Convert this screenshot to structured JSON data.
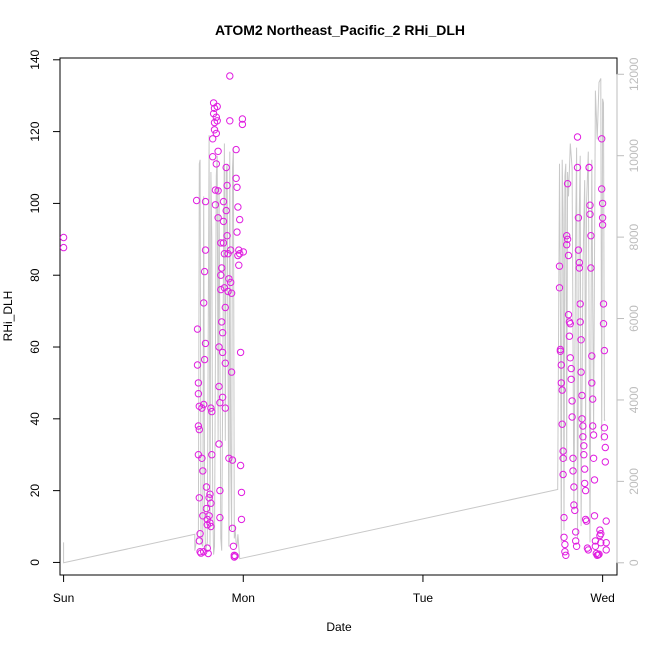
{
  "chart_data": {
    "type": "scatter",
    "title": "ATOM2 Northeast_Pacific_2 RHi_DLH",
    "xlabel": "Date",
    "ylabel": "RHi_DLH",
    "x_ticks": [
      {
        "label": "Sun",
        "value": 0
      },
      {
        "label": "Mon",
        "value": 1
      },
      {
        "label": "Tue",
        "value": 2
      },
      {
        "label": "Wed",
        "value": 3
      }
    ],
    "y_ticks": [
      "0",
      "20",
      "40",
      "60",
      "80",
      "100",
      "120",
      "140"
    ],
    "y2_ticks": [
      "0",
      "2000",
      "4000",
      "6000",
      "8000",
      "10000",
      "12000"
    ],
    "xlim": [
      -0.02,
      3.08
    ],
    "ylim": [
      -3.5,
      140.5
    ],
    "y2lim": [
      -300,
      12400
    ],
    "grid": false,
    "colors": {
      "points": "#e01ee0",
      "line": "#c8c8c8",
      "right_axis": "#bdbdbd"
    },
    "series": [
      {
        "marker": "circle",
        "points": [
          [
            0.0,
            90.5
          ],
          [
            0.0,
            87.7
          ],
          [
            0.74,
            100.8
          ],
          [
            0.745,
            65
          ],
          [
            0.745,
            55
          ],
          [
            0.75,
            50
          ],
          [
            0.75,
            47
          ],
          [
            0.755,
            43.5
          ],
          [
            0.75,
            38
          ],
          [
            0.755,
            37
          ],
          [
            0.75,
            30
          ],
          [
            0.755,
            18
          ],
          [
            0.76,
            8
          ],
          [
            0.755,
            6
          ],
          [
            0.76,
            3
          ],
          [
            0.765,
            2.6
          ],
          [
            0.77,
            43
          ],
          [
            0.77,
            29
          ],
          [
            0.775,
            25.5
          ],
          [
            0.775,
            13
          ],
          [
            0.78,
            72.3
          ],
          [
            0.78,
            44
          ],
          [
            0.78,
            3
          ],
          [
            0.785,
            81
          ],
          [
            0.785,
            56.5
          ],
          [
            0.79,
            87
          ],
          [
            0.79,
            100.5
          ],
          [
            0.79,
            61
          ],
          [
            0.795,
            21
          ],
          [
            0.795,
            15
          ],
          [
            0.8,
            12
          ],
          [
            0.8,
            10.5
          ],
          [
            0.8,
            4
          ],
          [
            0.805,
            2.5
          ],
          [
            0.81,
            18
          ],
          [
            0.81,
            13
          ],
          [
            0.815,
            19
          ],
          [
            0.815,
            11
          ],
          [
            0.82,
            16.5
          ],
          [
            0.82,
            10
          ],
          [
            0.82,
            43
          ],
          [
            0.825,
            30
          ],
          [
            0.825,
            42
          ],
          [
            0.83,
            113
          ],
          [
            0.83,
            118
          ],
          [
            0.835,
            125
          ],
          [
            0.835,
            128
          ],
          [
            0.84,
            126.5
          ],
          [
            0.84,
            122.5
          ],
          [
            0.84,
            120.5
          ],
          [
            0.845,
            103.7
          ],
          [
            0.845,
            99.6
          ],
          [
            0.85,
            111
          ],
          [
            0.85,
            119.5
          ],
          [
            0.85,
            124
          ],
          [
            0.855,
            127
          ],
          [
            0.855,
            123
          ],
          [
            0.86,
            96
          ],
          [
            0.86,
            103.5
          ],
          [
            0.86,
            114.5
          ],
          [
            0.865,
            60
          ],
          [
            0.865,
            49
          ],
          [
            0.865,
            33
          ],
          [
            0.87,
            44.5
          ],
          [
            0.87,
            20
          ],
          [
            0.87,
            12.5
          ],
          [
            0.875,
            89
          ],
          [
            0.875,
            80
          ],
          [
            0.875,
            76
          ],
          [
            0.88,
            82
          ],
          [
            0.88,
            67
          ],
          [
            0.885,
            64
          ],
          [
            0.885,
            58.5
          ],
          [
            0.885,
            46
          ],
          [
            0.89,
            100.5
          ],
          [
            0.89,
            95
          ],
          [
            0.89,
            89
          ],
          [
            0.895,
            86
          ],
          [
            0.895,
            76.5
          ],
          [
            0.9,
            71
          ],
          [
            0.9,
            55.5
          ],
          [
            0.9,
            43
          ],
          [
            0.905,
            110
          ],
          [
            0.905,
            98
          ],
          [
            0.91,
            105
          ],
          [
            0.91,
            91
          ],
          [
            0.915,
            86
          ],
          [
            0.915,
            75.5
          ],
          [
            0.92,
            79
          ],
          [
            0.92,
            29
          ],
          [
            0.925,
            135.5
          ],
          [
            0.925,
            123
          ],
          [
            0.93,
            87
          ],
          [
            0.93,
            78
          ],
          [
            0.935,
            75
          ],
          [
            0.935,
            53
          ],
          [
            0.94,
            28.5
          ],
          [
            0.94,
            9.5
          ],
          [
            0.945,
            4.5
          ],
          [
            0.95,
            2
          ],
          [
            0.95,
            1.5
          ],
          [
            0.955,
            1.8
          ],
          [
            0.96,
            115
          ],
          [
            0.96,
            107
          ],
          [
            0.965,
            104.5
          ],
          [
            0.965,
            92
          ],
          [
            0.97,
            99
          ],
          [
            0.97,
            85.5
          ],
          [
            0.975,
            87
          ],
          [
            0.975,
            82.8
          ],
          [
            0.98,
            95.5
          ],
          [
            0.98,
            86
          ],
          [
            0.985,
            58.5
          ],
          [
            0.985,
            27
          ],
          [
            0.99,
            19.5
          ],
          [
            0.99,
            12
          ],
          [
            0.995,
            123.5
          ],
          [
            0.995,
            122
          ],
          [
            1.0,
            86.5
          ],
          [
            2.76,
            76.5
          ],
          [
            2.76,
            82.5
          ],
          [
            2.765,
            58.8
          ],
          [
            2.765,
            59.3
          ],
          [
            2.77,
            55
          ],
          [
            2.77,
            50
          ],
          [
            2.775,
            48
          ],
          [
            2.775,
            38.5
          ],
          [
            2.78,
            31
          ],
          [
            2.78,
            29
          ],
          [
            2.78,
            24.5
          ],
          [
            2.785,
            12.5
          ],
          [
            2.785,
            7
          ],
          [
            2.79,
            5
          ],
          [
            2.79,
            3
          ],
          [
            2.795,
            2
          ],
          [
            2.8,
            91
          ],
          [
            2.8,
            88.5
          ],
          [
            2.805,
            105.5
          ],
          [
            2.805,
            90
          ],
          [
            2.81,
            85.5
          ],
          [
            2.81,
            69
          ],
          [
            2.815,
            67
          ],
          [
            2.815,
            63
          ],
          [
            2.82,
            66.5
          ],
          [
            2.82,
            57
          ],
          [
            2.825,
            54
          ],
          [
            2.825,
            51
          ],
          [
            2.83,
            45
          ],
          [
            2.83,
            40.5
          ],
          [
            2.835,
            29
          ],
          [
            2.835,
            25.5
          ],
          [
            2.84,
            21
          ],
          [
            2.84,
            16
          ],
          [
            2.845,
            14.5
          ],
          [
            2.85,
            8.5
          ],
          [
            2.85,
            6
          ],
          [
            2.855,
            4.5
          ],
          [
            2.86,
            118.5
          ],
          [
            2.86,
            110
          ],
          [
            2.865,
            96
          ],
          [
            2.865,
            87
          ],
          [
            2.87,
            83.5
          ],
          [
            2.87,
            82
          ],
          [
            2.875,
            72
          ],
          [
            2.875,
            67
          ],
          [
            2.88,
            62
          ],
          [
            2.88,
            53
          ],
          [
            2.885,
            46.5
          ],
          [
            2.885,
            40
          ],
          [
            2.89,
            38
          ],
          [
            2.89,
            35
          ],
          [
            2.895,
            32.5
          ],
          [
            2.895,
            30
          ],
          [
            2.9,
            26
          ],
          [
            2.9,
            22
          ],
          [
            2.905,
            20
          ],
          [
            2.905,
            12
          ],
          [
            2.91,
            11.5
          ],
          [
            2.915,
            4
          ],
          [
            2.92,
            3.5
          ],
          [
            2.925,
            110
          ],
          [
            2.925,
            110
          ],
          [
            2.93,
            97
          ],
          [
            2.93,
            99.5
          ],
          [
            2.935,
            91
          ],
          [
            2.935,
            82
          ],
          [
            2.94,
            57.5
          ],
          [
            2.94,
            50
          ],
          [
            2.945,
            45.5
          ],
          [
            2.945,
            38
          ],
          [
            2.95,
            35.5
          ],
          [
            2.95,
            29
          ],
          [
            2.955,
            23
          ],
          [
            2.955,
            13
          ],
          [
            2.96,
            6
          ],
          [
            2.96,
            4.5
          ],
          [
            2.965,
            2.5
          ],
          [
            2.97,
            2
          ],
          [
            2.975,
            2.1
          ],
          [
            2.98,
            2.3
          ],
          [
            2.985,
            7.5
          ],
          [
            2.985,
            9
          ],
          [
            2.99,
            5.5
          ],
          [
            2.99,
            8
          ],
          [
            2.995,
            118
          ],
          [
            2.995,
            104
          ],
          [
            3.0,
            100
          ],
          [
            3.0,
            96
          ],
          [
            3.0,
            94
          ],
          [
            3.005,
            72
          ],
          [
            3.005,
            66.5
          ],
          [
            3.01,
            59
          ],
          [
            3.01,
            37.5
          ],
          [
            3.01,
            35
          ],
          [
            3.015,
            32
          ],
          [
            3.015,
            28
          ],
          [
            3.02,
            11.5
          ],
          [
            3.02,
            5.5
          ],
          [
            3.02,
            3.5
          ]
        ]
      },
      {
        "type": "line",
        "axis": "right",
        "points": [
          [
            0.0,
            500
          ],
          [
            0.0,
            0
          ],
          [
            0.73,
            700
          ],
          [
            0.73,
            300
          ],
          [
            0.75,
            800
          ],
          [
            0.755,
            9800
          ],
          [
            0.76,
            9900
          ],
          [
            0.765,
            500
          ],
          [
            0.775,
            400
          ],
          [
            0.78,
            9000
          ],
          [
            0.785,
            1200
          ],
          [
            0.79,
            300
          ],
          [
            0.8,
            500
          ],
          [
            0.81,
            10500
          ],
          [
            0.815,
            400
          ],
          [
            0.82,
            9600
          ],
          [
            0.825,
            8000
          ],
          [
            0.83,
            1500
          ],
          [
            0.835,
            200
          ],
          [
            0.84,
            400
          ],
          [
            0.85,
            9500
          ],
          [
            0.855,
            10000
          ],
          [
            0.86,
            3000
          ],
          [
            0.865,
            9200
          ],
          [
            0.87,
            5500
          ],
          [
            0.875,
            600
          ],
          [
            0.88,
            300
          ],
          [
            0.89,
            7400
          ],
          [
            0.895,
            10300
          ],
          [
            0.9,
            3000
          ],
          [
            0.905,
            9600
          ],
          [
            0.91,
            9800
          ],
          [
            0.92,
            400
          ],
          [
            0.925,
            10100
          ],
          [
            0.93,
            2500
          ],
          [
            0.935,
            800
          ],
          [
            0.94,
            9700
          ],
          [
            0.945,
            10200
          ],
          [
            0.95,
            600
          ],
          [
            0.955,
            800
          ],
          [
            0.96,
            500
          ],
          [
            0.965,
            400
          ],
          [
            0.97,
            700
          ],
          [
            0.98,
            100
          ],
          [
            2.75,
            1800
          ],
          [
            2.76,
            9800
          ],
          [
            2.765,
            6500
          ],
          [
            2.77,
            500
          ],
          [
            2.775,
            9900
          ],
          [
            2.78,
            8500
          ],
          [
            2.785,
            800
          ],
          [
            2.79,
            9500
          ],
          [
            2.795,
            9800
          ],
          [
            2.8,
            2500
          ],
          [
            2.805,
            9600
          ],
          [
            2.81,
            9000
          ],
          [
            2.82,
            10300
          ],
          [
            2.83,
            9700
          ],
          [
            2.84,
            1300
          ],
          [
            2.85,
            8200
          ],
          [
            2.855,
            10200
          ],
          [
            2.86,
            600
          ],
          [
            2.87,
            8600
          ],
          [
            2.875,
            10000
          ],
          [
            2.88,
            900
          ],
          [
            2.89,
            7200
          ],
          [
            2.9,
            9400
          ],
          [
            2.905,
            3000
          ],
          [
            2.91,
            8800
          ],
          [
            2.92,
            10100
          ],
          [
            2.93,
            500
          ],
          [
            2.94,
            9900
          ],
          [
            2.95,
            3200
          ],
          [
            2.96,
            11600
          ],
          [
            2.97,
            10400
          ],
          [
            2.98,
            11800
          ],
          [
            2.99,
            11900
          ],
          [
            2.995,
            3000
          ],
          [
            3.0,
            11400
          ],
          [
            3.005,
            11300
          ],
          [
            3.01,
            3500
          ],
          [
            3.015,
            3500
          ]
        ]
      }
    ]
  }
}
